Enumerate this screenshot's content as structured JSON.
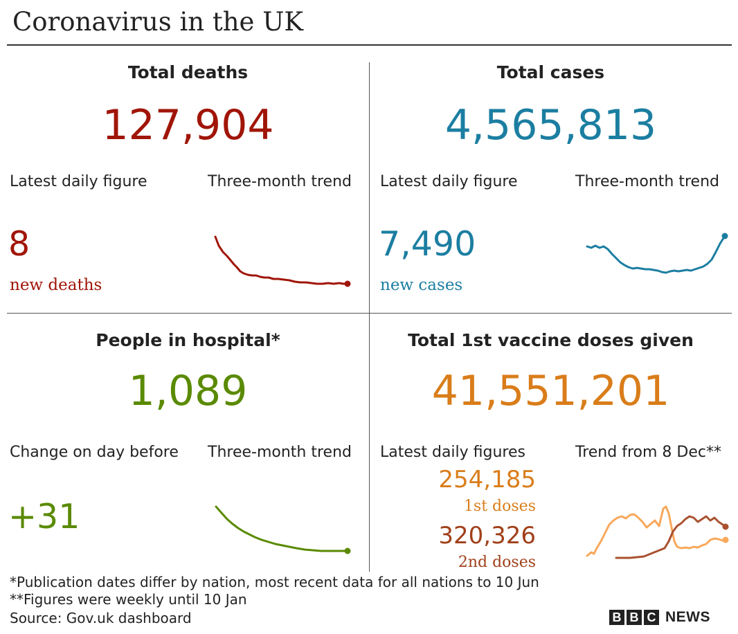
{
  "title": "Coronavirus in the UK",
  "colors": {
    "deaths": "#a01508",
    "cases": "#1b7ea1",
    "hospital": "#5a8a00",
    "vaccine": "#d97d1a",
    "first_dose": "#d97d1a",
    "first_dose_line": "#f8a85a",
    "second_dose": "#a0401a",
    "second_dose_line": "#a9512f",
    "text": "#222222"
  },
  "deaths": {
    "heading": "Total deaths",
    "total": "127,904",
    "latest_label": "Latest daily figure",
    "trend_label": "Three-month trend",
    "latest_value": "8",
    "latest_caption": "new deaths",
    "trend_icon": "deaths-trend-sparkline"
  },
  "cases": {
    "heading": "Total cases",
    "total": "4,565,813",
    "latest_label": "Latest daily figure",
    "trend_label": "Three-month trend",
    "latest_value": "7,490",
    "latest_caption": "new cases",
    "trend_icon": "cases-trend-sparkline"
  },
  "hospital": {
    "heading": "People in hospital*",
    "total": "1,089",
    "latest_label": "Change on day before",
    "trend_label": "Three-month trend",
    "latest_value": "+31",
    "trend_icon": "hospital-trend-sparkline"
  },
  "vaccine": {
    "heading": "Total 1st vaccine doses given",
    "total": "41,551,201",
    "latest_label": "Latest daily figures",
    "trend_label": "Trend from 8 Dec**",
    "first_value": "254,185",
    "first_caption": "1st doses",
    "second_value": "320,326",
    "second_caption": "2nd doses",
    "trend_icon": "vaccine-trend-sparkline"
  },
  "footnotes": {
    "note1": "*Publication dates differ by nation, most recent data for all nations to 10 Jun",
    "note2": "**Figures were weekly until 10 Jan",
    "source": "Source: Gov.uk dashboard"
  },
  "brand": {
    "letters": [
      "B",
      "B",
      "C"
    ],
    "news": "NEWS"
  }
}
